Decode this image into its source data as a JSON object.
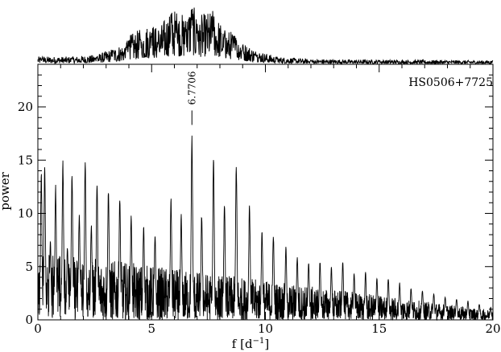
{
  "chart_data": [
    {
      "type": "line",
      "role": "window-function",
      "title": "",
      "xlabel": "",
      "ylabel": "",
      "xlim": [
        0,
        20
      ],
      "ylim": [
        0,
        1
      ],
      "grid": false,
      "legend": "none",
      "envelope_peaks": [
        {
          "f": 0.2,
          "power": 0.12
        },
        {
          "f": 1.5,
          "power": 0.12
        },
        {
          "f": 2.6,
          "power": 0.15
        },
        {
          "f": 3.3,
          "power": 0.25
        },
        {
          "f": 3.9,
          "power": 0.35
        },
        {
          "f": 4.0,
          "power": 0.45
        },
        {
          "f": 4.5,
          "power": 0.55
        },
        {
          "f": 5.0,
          "power": 0.65
        },
        {
          "f": 5.3,
          "power": 0.55
        },
        {
          "f": 5.85,
          "power": 0.88
        },
        {
          "f": 6.1,
          "power": 0.85
        },
        {
          "f": 6.5,
          "power": 0.75
        },
        {
          "f": 6.76,
          "power": 1.0
        },
        {
          "f": 7.0,
          "power": 0.75
        },
        {
          "f": 7.7,
          "power": 0.85
        },
        {
          "f": 8.2,
          "power": 0.55
        },
        {
          "f": 8.7,
          "power": 0.5
        },
        {
          "f": 9.0,
          "power": 0.35
        },
        {
          "f": 9.6,
          "power": 0.22
        },
        {
          "f": 10.5,
          "power": 0.12
        },
        {
          "f": 12.0,
          "power": 0.08
        },
        {
          "f": 15.0,
          "power": 0.07
        },
        {
          "f": 20.0,
          "power": 0.06
        }
      ]
    },
    {
      "type": "line",
      "role": "periodogram",
      "title": "",
      "object_label": "HS0506+7725",
      "xlabel": "f [d",
      "xlabel_sup": "−1",
      "xlabel_end": "]",
      "ylabel": "power",
      "xlim": [
        0,
        20
      ],
      "ylim": [
        0,
        24
      ],
      "xticks": [
        0,
        5,
        10,
        15,
        20
      ],
      "yticks": [
        0,
        5,
        10,
        15,
        20
      ],
      "grid": false,
      "legend": "none",
      "peak_annotation": {
        "f": 6.7706,
        "power": 17.4,
        "label": "6.7706"
      },
      "major_peaks": [
        {
          "f": 0.15,
          "power": 14.0
        },
        {
          "f": 0.3,
          "power": 14.5
        },
        {
          "f": 0.55,
          "power": 7.5
        },
        {
          "f": 0.78,
          "power": 12.8
        },
        {
          "f": 1.1,
          "power": 15.0
        },
        {
          "f": 1.3,
          "power": 7.0
        },
        {
          "f": 1.5,
          "power": 14.0
        },
        {
          "f": 1.82,
          "power": 10.0
        },
        {
          "f": 2.08,
          "power": 15.0
        },
        {
          "f": 2.35,
          "power": 9.0
        },
        {
          "f": 2.6,
          "power": 13.0
        },
        {
          "f": 3.1,
          "power": 12.5
        },
        {
          "f": 3.6,
          "power": 11.5
        },
        {
          "f": 4.1,
          "power": 10.0
        },
        {
          "f": 4.65,
          "power": 9.0
        },
        {
          "f": 5.15,
          "power": 8.0
        },
        {
          "f": 5.85,
          "power": 11.5
        },
        {
          "f": 6.3,
          "power": 10.0
        },
        {
          "f": 6.7706,
          "power": 17.4
        },
        {
          "f": 7.2,
          "power": 10.0
        },
        {
          "f": 7.72,
          "power": 15.2
        },
        {
          "f": 8.2,
          "power": 11.0
        },
        {
          "f": 8.72,
          "power": 14.7
        },
        {
          "f": 9.3,
          "power": 11.0
        },
        {
          "f": 9.85,
          "power": 8.5
        },
        {
          "f": 10.35,
          "power": 8.0
        },
        {
          "f": 10.9,
          "power": 7.0
        },
        {
          "f": 11.4,
          "power": 6.0
        },
        {
          "f": 11.9,
          "power": 5.5
        },
        {
          "f": 12.4,
          "power": 5.5
        },
        {
          "f": 12.9,
          "power": 5.0
        },
        {
          "f": 13.4,
          "power": 5.5
        },
        {
          "f": 13.9,
          "power": 4.5
        },
        {
          "f": 14.4,
          "power": 4.5
        },
        {
          "f": 14.9,
          "power": 4.0
        },
        {
          "f": 15.4,
          "power": 4.0
        },
        {
          "f": 15.9,
          "power": 3.5
        },
        {
          "f": 16.4,
          "power": 3.0
        },
        {
          "f": 16.9,
          "power": 2.8
        },
        {
          "f": 17.4,
          "power": 2.5
        },
        {
          "f": 17.9,
          "power": 2.2
        },
        {
          "f": 18.4,
          "power": 2.0
        },
        {
          "f": 18.9,
          "power": 1.8
        },
        {
          "f": 19.4,
          "power": 1.5
        },
        {
          "f": 19.9,
          "power": 1.2
        }
      ]
    }
  ]
}
